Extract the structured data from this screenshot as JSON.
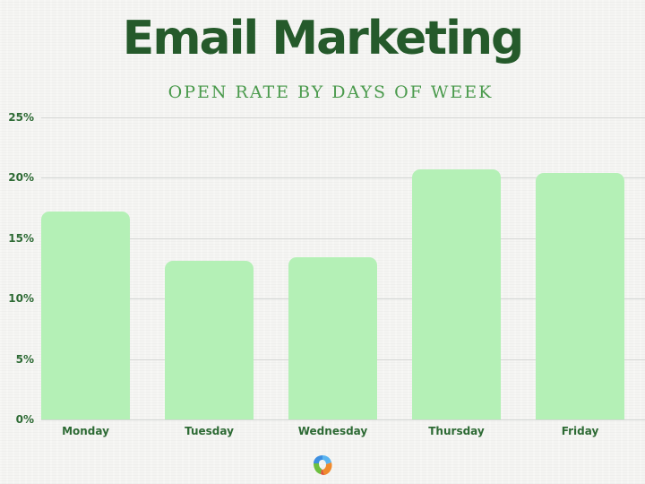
{
  "header": {
    "title": "Email Marketing",
    "subtitle": "OPEN RATE BY DAYS OF WEEK"
  },
  "colors": {
    "title": "#255a2b",
    "subtitle": "#4a9a4c",
    "bar": "#b4f0b6",
    "axis_text": "#2d6a34"
  },
  "logo": {
    "icon": "swirl-logo-icon"
  },
  "chart_data": {
    "type": "bar",
    "title": "Email Marketing",
    "subtitle": "Open Rate by Days of Week",
    "xlabel": "",
    "ylabel": "",
    "categories": [
      "Monday",
      "Tuesday",
      "Wednesday",
      "Thursday",
      "Friday"
    ],
    "values": [
      17.2,
      13.1,
      13.4,
      20.7,
      20.4
    ],
    "unit": "%",
    "ylim": [
      0,
      25
    ],
    "yticks": [
      "0%",
      "5%",
      "10%",
      "15%",
      "20%",
      "25%"
    ],
    "grid": true,
    "legend": null
  }
}
